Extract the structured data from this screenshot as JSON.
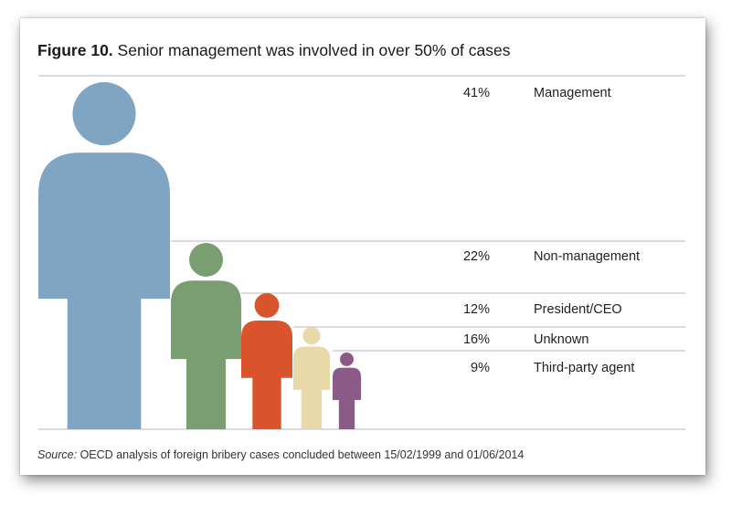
{
  "title": {
    "prefix": "Figure 10.",
    "text": "Senior management was involved in over 50% of cases"
  },
  "source": {
    "label": "Source:",
    "text": "OECD analysis of foreign bribery cases concluded between 15/02/1999 and 01/06/2014"
  },
  "colors": {
    "grid": "#b9b9b9",
    "text": "#222222",
    "series": [
      "#7fa5c3",
      "#7a9e72",
      "#d9542c",
      "#e8d9a8",
      "#8c5a87"
    ]
  },
  "chart_data": {
    "type": "pictogram",
    "categories": [
      "Management",
      "Non-management",
      "President/CEO",
      "Unknown",
      "Third-party agent"
    ],
    "values": [
      41,
      22,
      12,
      16,
      9
    ],
    "value_labels": [
      "41%",
      "22%",
      "12%",
      "16%",
      "9%"
    ],
    "grid": true,
    "legend": "right"
  }
}
